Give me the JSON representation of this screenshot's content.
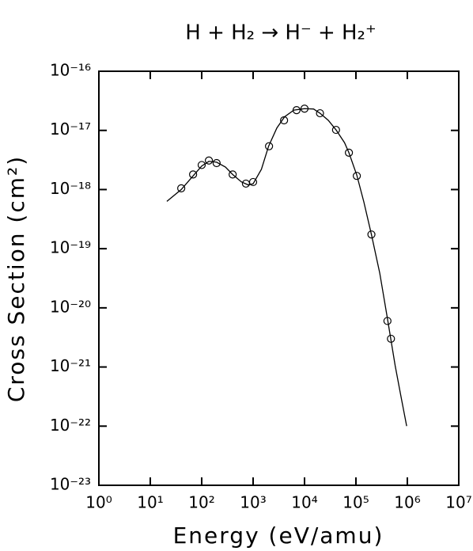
{
  "chart_data": {
    "type": "scatter",
    "title": "H + H₂ → H⁻ + H₂⁺",
    "xlabel": "Energy (eV/amu)",
    "ylabel": "Cross Section (cm²)",
    "xscale": "log",
    "yscale": "log",
    "xlim": [
      1,
      10000000
    ],
    "ylim": [
      1e-23,
      1e-16
    ],
    "xticks": [
      {
        "value": 1,
        "label": "10⁰"
      },
      {
        "value": 10,
        "label": "10¹"
      },
      {
        "value": 100,
        "label": "10²"
      },
      {
        "value": 1000,
        "label": "10³"
      },
      {
        "value": 10000,
        "label": "10⁴"
      },
      {
        "value": 100000,
        "label": "10⁵"
      },
      {
        "value": 1000000,
        "label": "10⁶"
      },
      {
        "value": 10000000,
        "label": "10⁷"
      }
    ],
    "yticks": [
      {
        "value": 1e-23,
        "label": "10⁻²³"
      },
      {
        "value": 1e-22,
        "label": "10⁻²²"
      },
      {
        "value": 1e-21,
        "label": "10⁻²¹"
      },
      {
        "value": 1e-20,
        "label": "10⁻²⁰"
      },
      {
        "value": 1e-19,
        "label": "10⁻¹⁹"
      },
      {
        "value": 1e-18,
        "label": "10⁻¹⁸"
      },
      {
        "value": 1e-17,
        "label": "10⁻¹⁷"
      },
      {
        "value": 1e-16,
        "label": "10⁻¹⁶"
      }
    ],
    "series": [
      {
        "mode": "markers",
        "color": "#000000",
        "x": [
          40,
          68,
          100,
          138,
          195,
          400,
          725,
          1000,
          2040,
          4000,
          7000,
          10000,
          20000,
          41000,
          73000,
          104000,
          200000,
          410000,
          480000
        ],
        "values": [
          1.05e-18,
          1.8e-18,
          2.6e-18,
          3.1e-18,
          2.8e-18,
          1.8e-18,
          1.26e-18,
          1.34e-18,
          5.4e-18,
          1.48e-17,
          2.2e-17,
          2.33e-17,
          1.95e-17,
          1.02e-17,
          4.2e-18,
          1.7e-18,
          1.74e-19,
          6e-21,
          3e-21
        ]
      },
      {
        "mode": "lines",
        "color": "#000000",
        "x": [
          21,
          40,
          68,
          100,
          138,
          195,
          290,
          400,
          590,
          800,
          1000,
          1450,
          2000,
          2900,
          4100,
          6200,
          10000,
          15000,
          20000,
          29000,
          41000,
          60000,
          73000,
          104000,
          143000,
          200000,
          290000,
          410000,
          580000,
          750000,
          970000
        ],
        "values": [
          6.3e-19,
          1e-18,
          1.7e-18,
          2.5e-18,
          3e-18,
          2.9e-18,
          2.4e-18,
          1.8e-18,
          1.35e-18,
          1.2e-18,
          1.25e-18,
          2.2e-18,
          5.4e-18,
          1.1e-17,
          1.7e-17,
          2.2e-17,
          2.33e-17,
          2.3e-17,
          1.95e-17,
          1.48e-17,
          1.02e-17,
          6.2e-18,
          4.2e-18,
          1.75e-18,
          6.1e-19,
          1.74e-19,
          3.9e-20,
          6.6e-21,
          1.05e-21,
          3.2e-22,
          1e-22
        ]
      }
    ]
  }
}
